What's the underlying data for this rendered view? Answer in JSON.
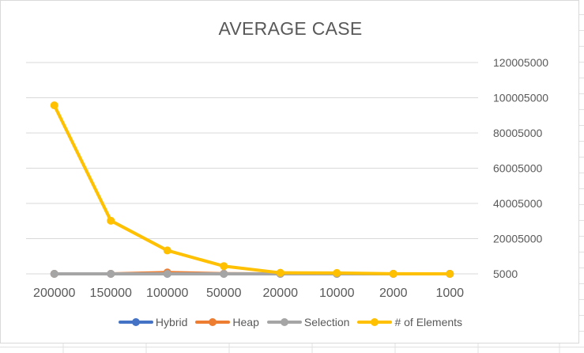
{
  "chart_data": {
    "type": "line",
    "title": "AVERAGE CASE",
    "categories": [
      "200000",
      "150000",
      "100000",
      "50000",
      "20000",
      "10000",
      "2000",
      "1000"
    ],
    "yaxis": {
      "position": "right",
      "ticks": [
        "5000",
        "20005000",
        "40005000",
        "60005000",
        "80005000",
        "100005000",
        "120005000"
      ],
      "ylim": [
        5000,
        120005000
      ]
    },
    "grid": true,
    "legend_position": "bottom",
    "series": [
      {
        "name": "Hybrid",
        "color": "#4472C4",
        "values": [
          5000,
          5000,
          5000,
          5000,
          5000,
          5000,
          5000,
          5000
        ]
      },
      {
        "name": "Heap",
        "color": "#ED7D31",
        "values": [
          5000,
          5000,
          800000,
          100000,
          5000,
          5000,
          5000,
          5000
        ]
      },
      {
        "name": "Selection",
        "color": "#A5A5A5",
        "values": [
          5000,
          5000,
          5000,
          5000,
          5000,
          5000,
          5000,
          5000
        ]
      },
      {
        "name": "# of Elements",
        "color": "#FFC000",
        "values": [
          95700000,
          30200000,
          13300000,
          4400000,
          600000,
          500000,
          60000,
          30000
        ]
      }
    ]
  }
}
